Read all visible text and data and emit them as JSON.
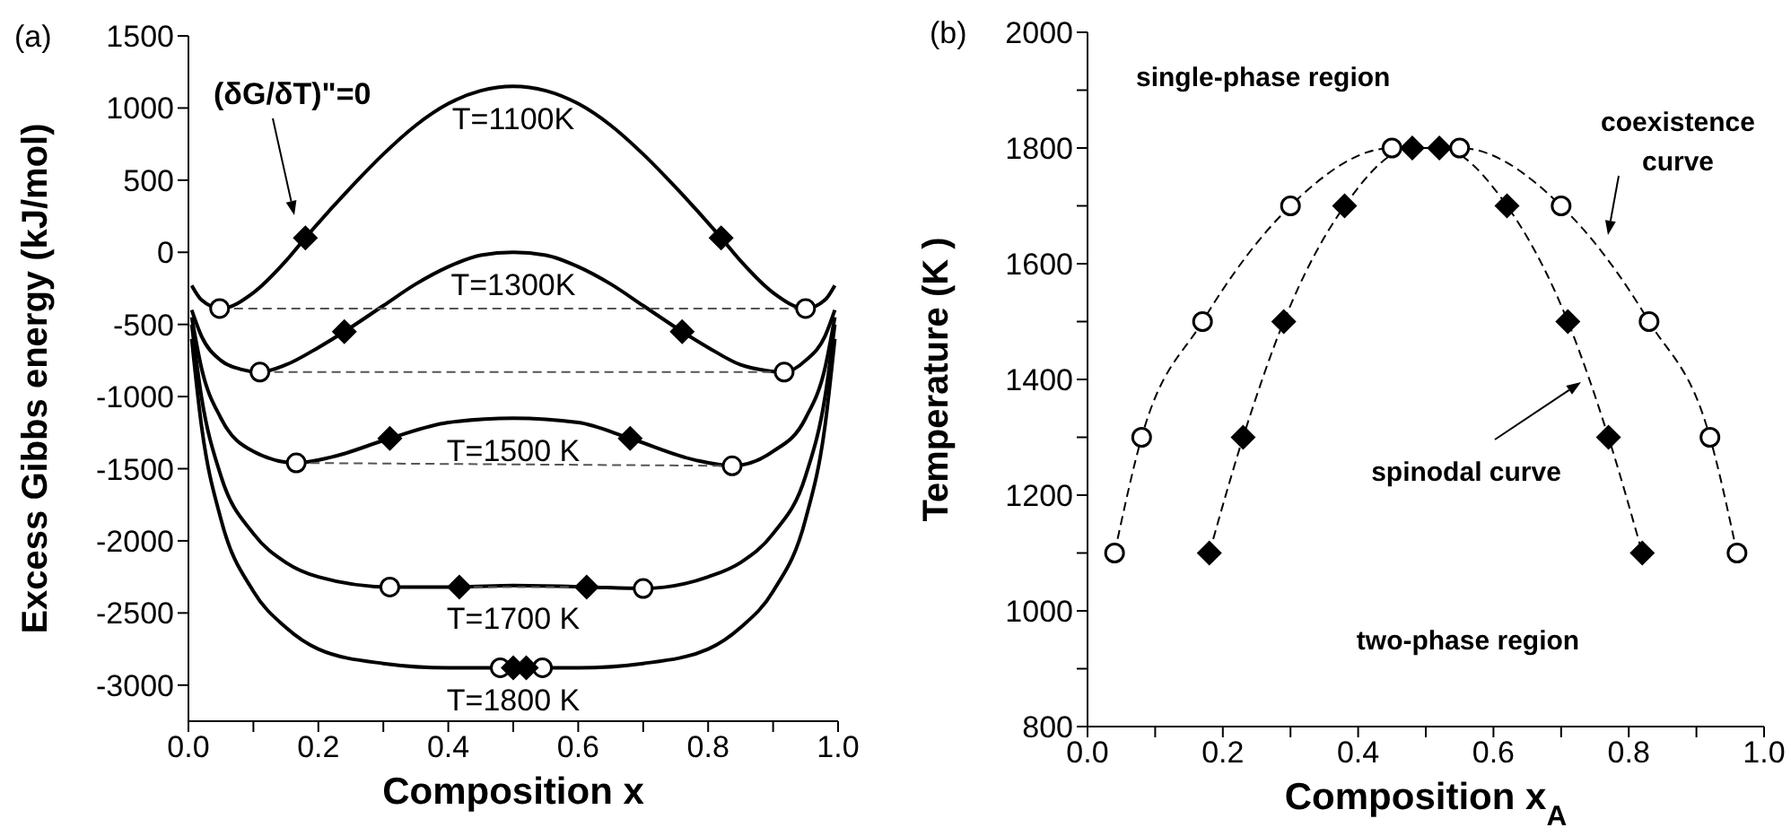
{
  "chart_data": [
    {
      "type": "line",
      "title": "(a)",
      "xlabel": "Composition x",
      "ylabel": "Excess Gibbs energy (kJ/mol)",
      "xlim": [
        0,
        1
      ],
      "ylim": [
        -3250,
        1500
      ],
      "xticks": [
        {
          "value": 0,
          "label": "0.0"
        },
        {
          "value": 0.1,
          "label": null
        },
        {
          "value": 0.2,
          "label": "0.2"
        },
        {
          "value": 0.3,
          "label": null
        },
        {
          "value": 0.4,
          "label": "0.4"
        },
        {
          "value": 0.5,
          "label": null
        },
        {
          "value": 0.6,
          "label": "0.6"
        },
        {
          "value": 0.7,
          "label": null
        },
        {
          "value": 0.8,
          "label": "0.8"
        },
        {
          "value": 0.9,
          "label": null
        },
        {
          "value": 1,
          "label": "1.0"
        }
      ],
      "yticks": [
        -3000,
        -2500,
        -2000,
        -1500,
        -1000,
        -500,
        0,
        500,
        1000,
        1500
      ],
      "annotations": [
        "(δG/δT)\"=0"
      ],
      "series": [
        {
          "name": "T=1100K",
          "color": "#000000",
          "x": [
            0.005,
            0.02,
            0.05,
            0.1,
            0.15,
            0.18,
            0.25,
            0.3,
            0.35,
            0.4,
            0.45,
            0.5,
            0.55,
            0.6,
            0.65,
            0.7,
            0.75,
            0.82,
            0.85,
            0.9,
            0.95,
            0.98,
            0.995
          ],
          "values": [
            -230,
            -330,
            -390,
            -280,
            -60,
            100,
            450,
            680,
            880,
            1030,
            1120,
            1150,
            1120,
            1030,
            880,
            680,
            450,
            100,
            -60,
            -280,
            -390,
            -330,
            -230
          ]
        },
        {
          "name": "T=1300K",
          "color": "#000000",
          "x": [
            0.005,
            0.02,
            0.05,
            0.08,
            0.11,
            0.15,
            0.2,
            0.24,
            0.3,
            0.35,
            0.4,
            0.45,
            0.5,
            0.55,
            0.6,
            0.65,
            0.7,
            0.76,
            0.8,
            0.85,
            0.89,
            0.917,
            0.95,
            0.98,
            0.995
          ],
          "values": [
            -400,
            -580,
            -750,
            -810,
            -830,
            -780,
            -660,
            -550,
            -370,
            -220,
            -100,
            -20,
            0,
            -20,
            -100,
            -220,
            -370,
            -550,
            -660,
            -780,
            -820,
            -830,
            -750,
            -580,
            -400
          ]
        },
        {
          "name": "T=1500 K",
          "color": "#000000",
          "x": [
            0.005,
            0.02,
            0.05,
            0.1,
            0.166,
            0.22,
            0.31,
            0.4,
            0.5,
            0.6,
            0.68,
            0.78,
            0.837,
            0.9,
            0.95,
            0.98,
            0.995
          ],
          "values": [
            -450,
            -800,
            -1150,
            -1380,
            -1460,
            -1420,
            -1290,
            -1180,
            -1150,
            -1180,
            -1290,
            -1440,
            -1480,
            -1380,
            -1150,
            -800,
            -450
          ]
        },
        {
          "name": "T=1700 K",
          "color": "#000000",
          "x": [
            0.005,
            0.02,
            0.05,
            0.1,
            0.15,
            0.2,
            0.31,
            0.417,
            0.5,
            0.613,
            0.7,
            0.8,
            0.85,
            0.9,
            0.95,
            0.98,
            0.995
          ],
          "values": [
            -500,
            -1000,
            -1550,
            -1950,
            -2150,
            -2250,
            -2320,
            -2320,
            -2310,
            -2320,
            -2330,
            -2250,
            -2150,
            -1950,
            -1550,
            -1000,
            -500
          ]
        },
        {
          "name": "T=1800 K",
          "color": "#000000",
          "x": [
            0.005,
            0.02,
            0.05,
            0.1,
            0.15,
            0.2,
            0.3,
            0.4,
            0.5,
            0.6,
            0.7,
            0.8,
            0.85,
            0.9,
            0.95,
            0.98,
            0.995
          ],
          "values": [
            -600,
            -1200,
            -1850,
            -2350,
            -2600,
            -2750,
            -2850,
            -2880,
            -2880,
            -2880,
            -2850,
            -2750,
            -2600,
            -2350,
            -1850,
            -1200,
            -600
          ]
        },
        {
          "line_style": "dashed",
          "color": "#555555",
          "x": [
            0.048,
            0.95
          ],
          "values": [
            -390,
            -390
          ]
        },
        {
          "line_style": "dashed",
          "color": "#555555",
          "x": [
            0.11,
            0.917
          ],
          "values": [
            -830,
            -830
          ]
        },
        {
          "line_style": "dashed",
          "color": "#555555",
          "x": [
            0.166,
            0.837
          ],
          "values": [
            -1460,
            -1480
          ]
        },
        {
          "line_style": "dashed",
          "color": "#555555",
          "x": [
            0.417,
            0.613
          ],
          "values": [
            -2320,
            -2320
          ]
        },
        {
          "type": "scatter",
          "marker": "circle",
          "color": "#000000",
          "x": [
            0.048,
            0.95,
            0.11,
            0.917,
            0.166,
            0.837,
            0.31,
            0.7,
            0.48,
            0.545
          ],
          "values": [
            -390,
            -390,
            -830,
            -830,
            -1460,
            -1480,
            -2320,
            -2330,
            -2880,
            -2880
          ]
        },
        {
          "type": "scatter",
          "marker": "diamond",
          "color": "#000000",
          "x": [
            0.18,
            0.82,
            0.24,
            0.76,
            0.31,
            0.68,
            0.417,
            0.613,
            0.5,
            0.52
          ],
          "values": [
            100,
            100,
            -550,
            -550,
            -1290,
            -1290,
            -2320,
            -2320,
            -2880,
            -2880
          ]
        }
      ]
    },
    {
      "type": "line",
      "title": "(b)",
      "xlabel": "Composition x$_{A}$",
      "ylabel": "Temperature (K )",
      "xlim": [
        0,
        1
      ],
      "ylim": [
        800,
        2000
      ],
      "xticks": [
        {
          "value": 0,
          "label": "0.0"
        },
        {
          "value": 0.1,
          "label": null
        },
        {
          "value": 0.2,
          "label": "0.2"
        },
        {
          "value": 0.3,
          "label": null
        },
        {
          "value": 0.4,
          "label": "0.4"
        },
        {
          "value": 0.5,
          "label": null
        },
        {
          "value": 0.6,
          "label": "0.6"
        },
        {
          "value": 0.7,
          "label": null
        },
        {
          "value": 0.8,
          "label": "0.8"
        },
        {
          "value": 0.9,
          "label": null
        },
        {
          "value": 1,
          "label": "1.0"
        }
      ],
      "yticks": [
        800,
        {
          "value": 900,
          "label": null
        },
        1000,
        {
          "value": 1100,
          "label": null
        },
        1200,
        {
          "value": 1300,
          "label": null
        },
        1400,
        {
          "value": 1500,
          "label": null
        },
        1600,
        {
          "value": 1700,
          "label": null
        },
        1800,
        {
          "value": 1900,
          "label": null
        },
        2000
      ],
      "line_style": "dashed",
      "annotations": [
        "single-phase region",
        "coexistence\ncurve",
        "spinodal curve",
        "two-phase region"
      ],
      "series": [
        {
          "marker": "circle",
          "color": "#000000",
          "x": [
            0.04,
            0.08,
            0.17,
            0.3,
            0.45,
            0.55,
            0.7,
            0.83,
            0.92,
            0.96
          ],
          "values": [
            1100,
            1300,
            1500,
            1700,
            1800,
            1800,
            1700,
            1500,
            1300,
            1100
          ]
        },
        {
          "marker": "diamond",
          "color": "#000000",
          "x": [
            0.18,
            0.23,
            0.29,
            0.38,
            0.48,
            0.52,
            0.62,
            0.71,
            0.77,
            0.82
          ],
          "values": [
            1100,
            1300,
            1500,
            1700,
            1800,
            1800,
            1700,
            1500,
            1300,
            1100
          ]
        }
      ]
    }
  ]
}
